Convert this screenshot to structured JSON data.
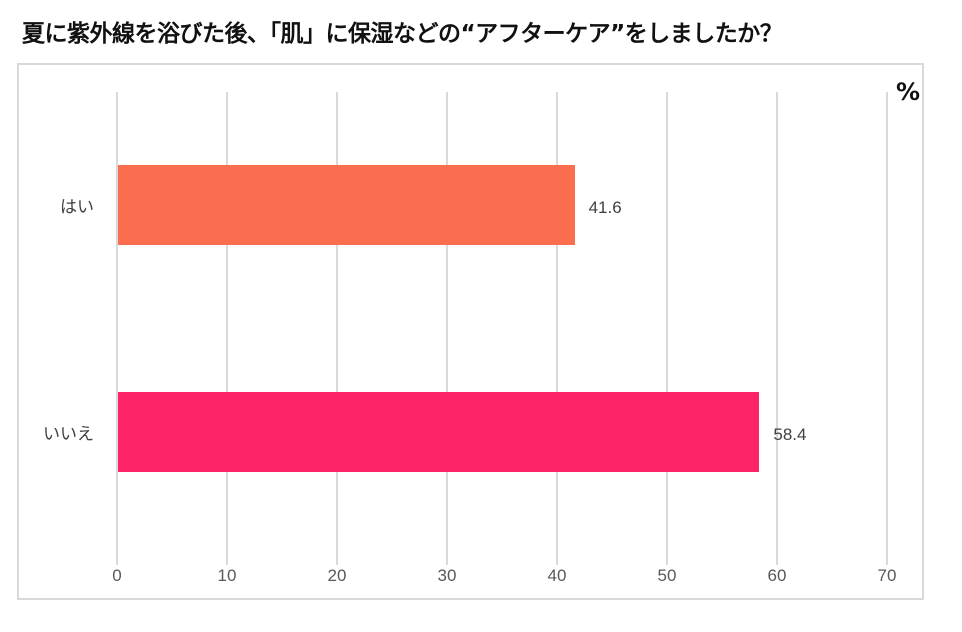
{
  "title": "夏に紫外線を浴びた後、「肌」に保湿などの“アフターケア”をしましたか？",
  "unit": "%",
  "chart_data": {
    "type": "bar",
    "orientation": "horizontal",
    "title": "夏に紫外線を浴びた後、「肌」に保湿などの“アフターケア”をしましたか？",
    "categories": [
      "はい",
      "いいえ"
    ],
    "values": [
      41.6,
      58.4
    ],
    "value_labels": [
      "41.6",
      "58.4"
    ],
    "colors": [
      "#FB6D4F",
      "#FE2468"
    ],
    "xlabel": "%",
    "ylabel": "",
    "xlim": [
      0,
      70
    ],
    "x_ticks": [
      "0",
      "10",
      "20",
      "30",
      "40",
      "50",
      "60",
      "70"
    ],
    "grid": true,
    "legend": "none"
  }
}
